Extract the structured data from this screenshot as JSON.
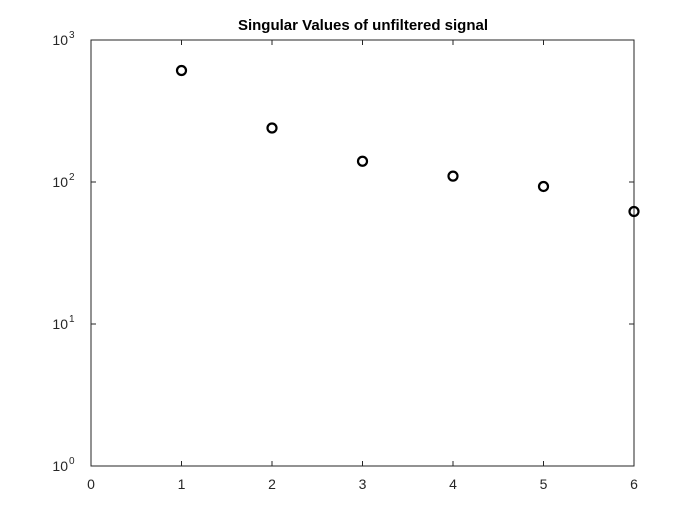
{
  "chart_data": {
    "type": "scatter",
    "title": "Singular Values of unfiltered signal",
    "xlabel": "",
    "ylabel": "",
    "xlim": [
      0,
      6
    ],
    "ylim": [
      1,
      1000
    ],
    "yscale": "log",
    "grid": false,
    "x_ticks": [
      {
        "value": 0,
        "label": "0"
      },
      {
        "value": 1,
        "label": "1"
      },
      {
        "value": 2,
        "label": "2"
      },
      {
        "value": 3,
        "label": "3"
      },
      {
        "value": 4,
        "label": "4"
      },
      {
        "value": 5,
        "label": "5"
      },
      {
        "value": 6,
        "label": "6"
      }
    ],
    "y_ticks": [
      {
        "value": 1,
        "base": "10",
        "exp": "0"
      },
      {
        "value": 10,
        "base": "10",
        "exp": "1"
      },
      {
        "value": 100,
        "base": "10",
        "exp": "2"
      },
      {
        "value": 1000,
        "base": "10",
        "exp": "3"
      }
    ],
    "marker": "open-circle",
    "marker_color": "#000000",
    "points": [
      {
        "x": 1,
        "y": 610
      },
      {
        "x": 2,
        "y": 240
      },
      {
        "x": 3,
        "y": 140
      },
      {
        "x": 4,
        "y": 110
      },
      {
        "x": 5,
        "y": 93
      },
      {
        "x": 6,
        "y": 62
      }
    ]
  }
}
